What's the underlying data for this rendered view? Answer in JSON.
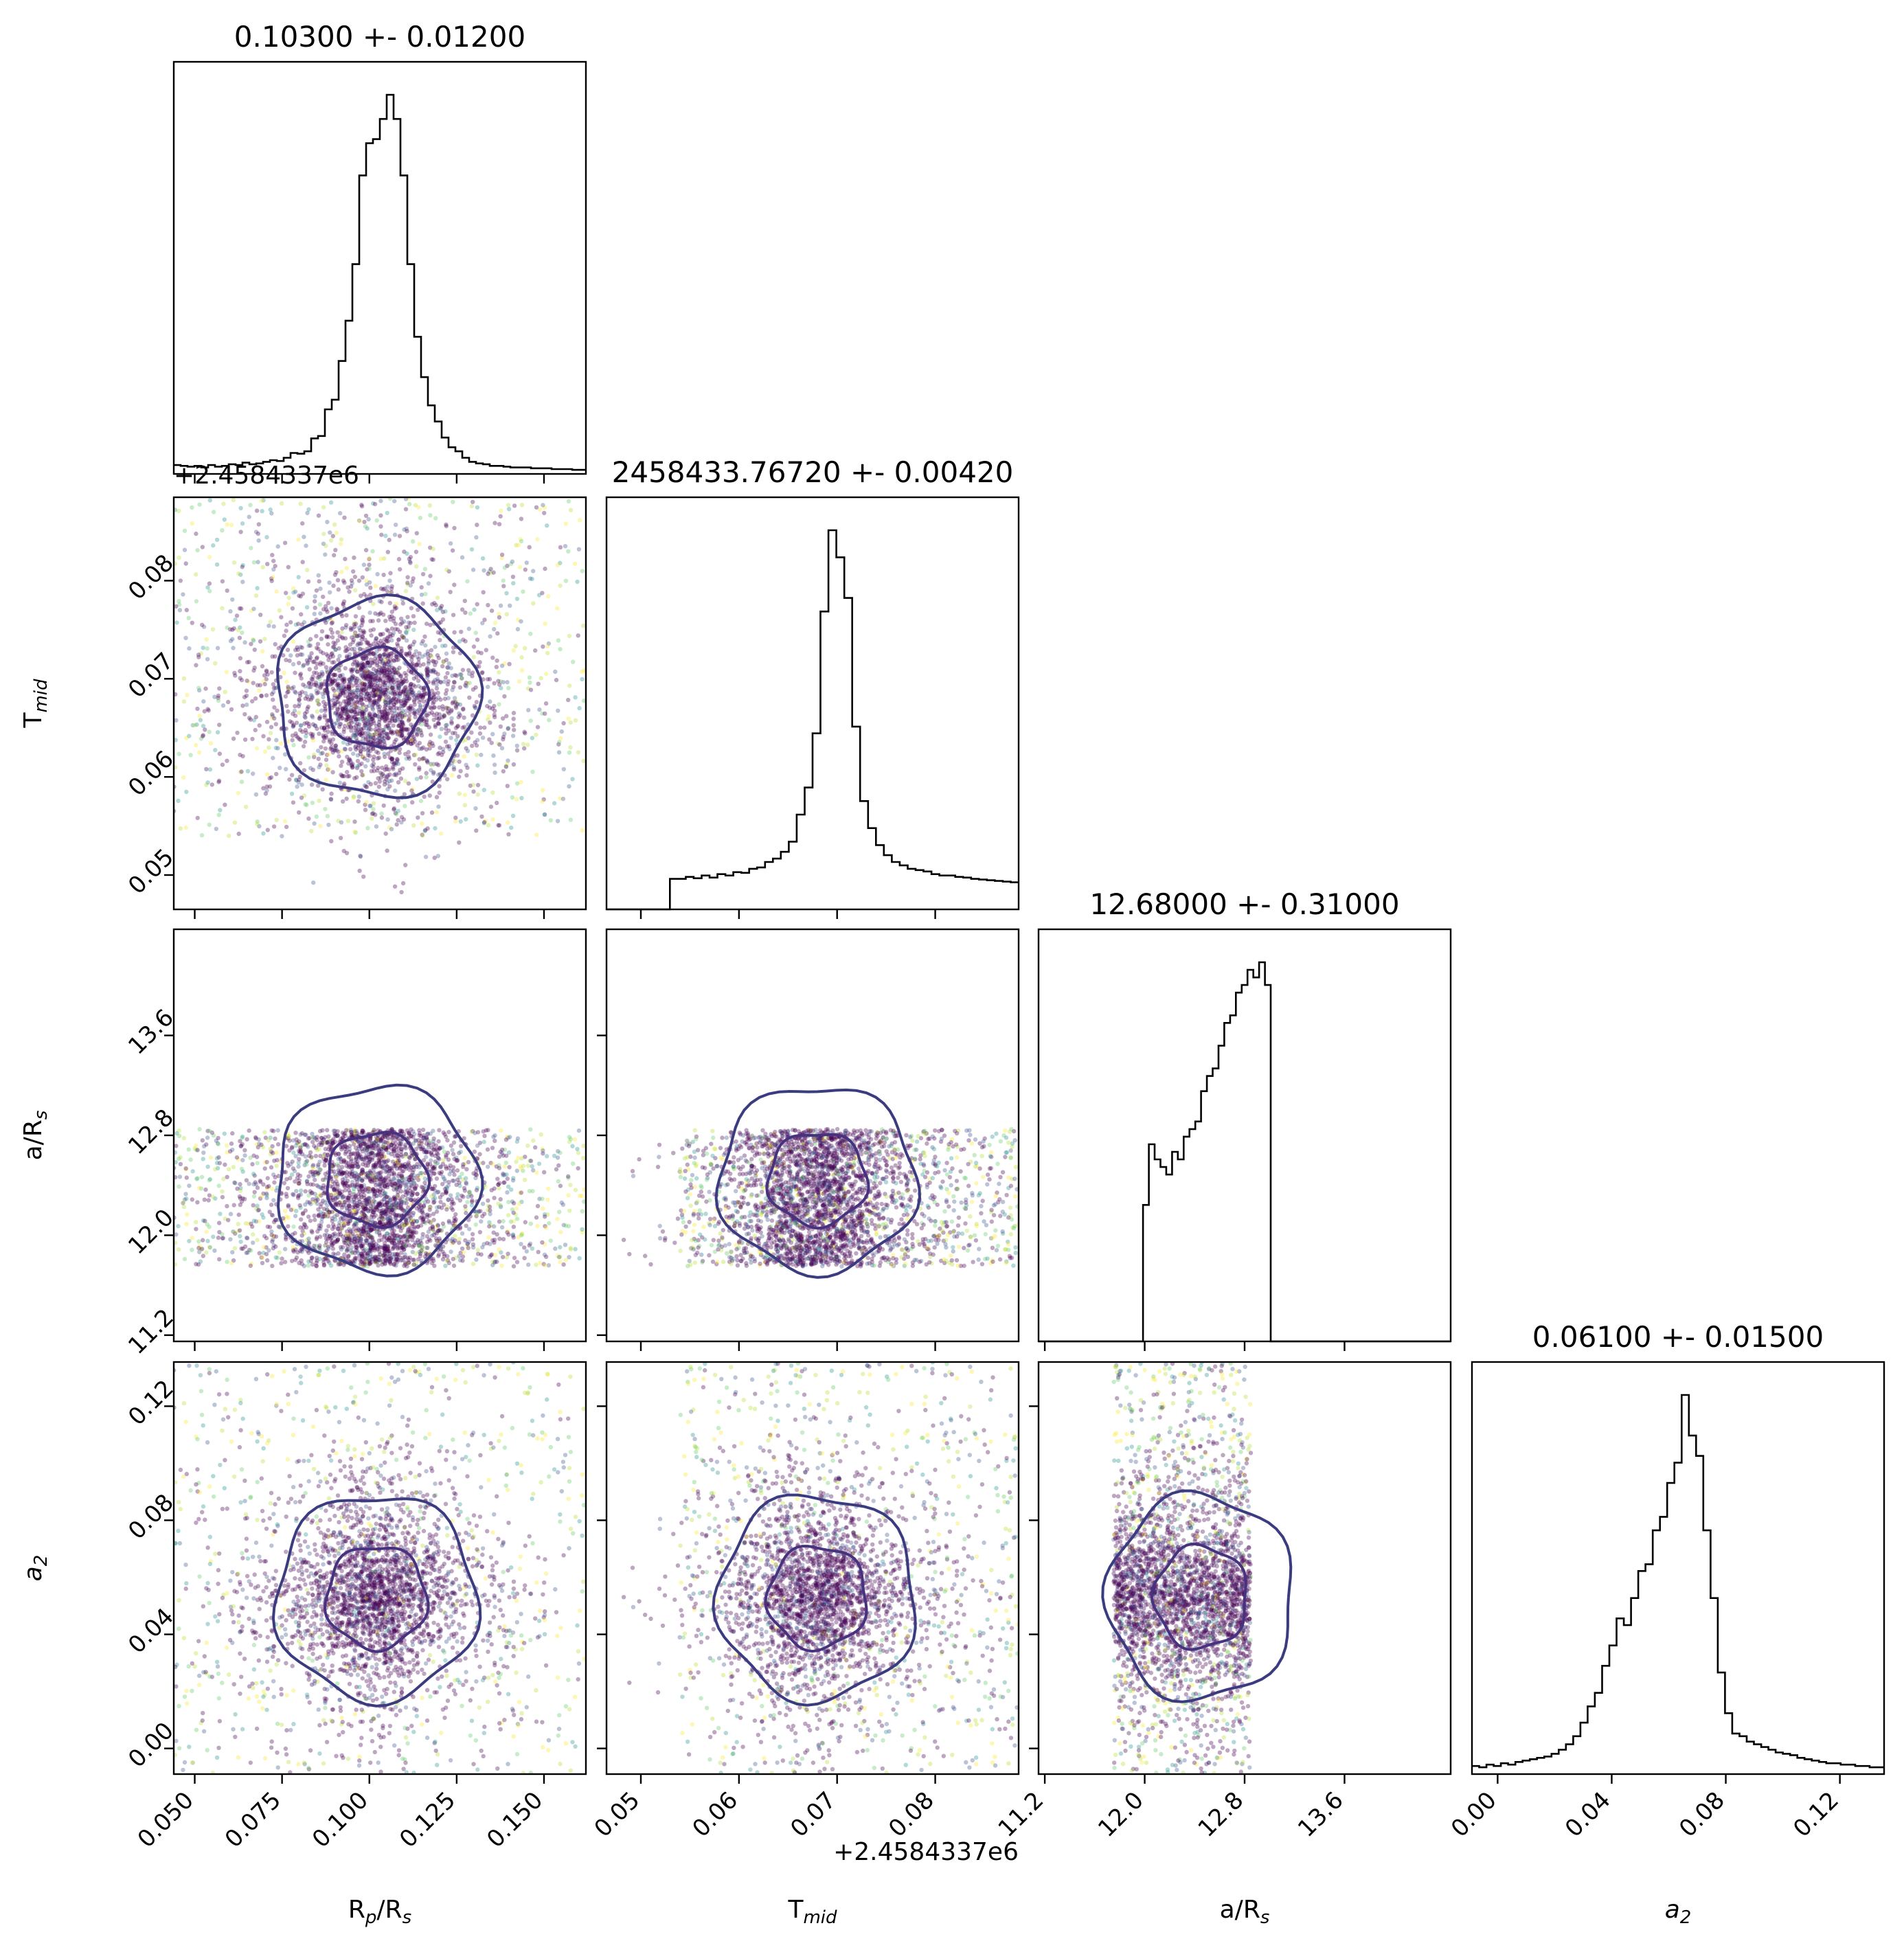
{
  "chart_data": {
    "type": "corner",
    "variables": [
      "R_p/R_s",
      "T_mid",
      "a/R_s",
      "a_2"
    ],
    "axis_labels": [
      {
        "main": "R",
        "sub": "p",
        "tail": "/R",
        "sub2": "s"
      },
      {
        "main": "T",
        "sub": "mid",
        "tail": "",
        "sub2": ""
      },
      {
        "main": "a/R",
        "sub": "s",
        "tail": "",
        "sub2": ""
      },
      {
        "main": "a",
        "sub": "2",
        "tail": "",
        "sub2": "",
        "italic": true
      }
    ],
    "titles": [
      "0.10300 +- 0.01200",
      "2458433.76720 +- 0.00420",
      "12.68000 +- 0.31000",
      "0.06100 +- 0.01500"
    ],
    "offset_text": "+2.4584337e6",
    "ranges": [
      [
        0.044,
        0.162
      ],
      [
        0.0465,
        0.0885
      ],
      [
        11.15,
        14.45
      ],
      [
        -0.009,
        0.1355
      ]
    ],
    "ticks": [
      {
        "values": [
          0.05,
          0.075,
          0.1,
          0.125,
          0.15
        ],
        "labels": [
          "0.050",
          "0.075",
          "0.100",
          "0.125",
          "0.150"
        ]
      },
      {
        "values": [
          0.05,
          0.06,
          0.07,
          0.08
        ],
        "labels": [
          "0.05",
          "0.06",
          "0.07",
          "0.08"
        ]
      },
      {
        "values": [
          11.2,
          12.0,
          12.8,
          13.6
        ],
        "labels": [
          "11.2",
          "12.0",
          "12.8",
          "13.6"
        ]
      },
      {
        "values": [
          0.0,
          0.04,
          0.08,
          0.12
        ],
        "labels": [
          "0.00",
          "0.04",
          "0.08",
          "0.12"
        ]
      }
    ],
    "diagonal_histograms": [
      {
        "variable": "R_p/R_s",
        "bins": [
          0.044,
          0.162
        ],
        "counts": [
          11,
          10,
          9,
          10,
          8,
          11,
          9,
          10,
          12,
          11,
          14,
          12,
          13,
          15,
          17,
          16,
          20,
          26,
          25,
          28,
          44,
          47,
          80,
          92,
          140,
          190,
          260,
          370,
          410,
          415,
          440,
          470,
          440,
          370,
          260,
          170,
          120,
          85,
          65,
          45,
          33,
          28,
          20,
          15,
          13,
          12,
          10,
          10,
          9,
          8,
          8,
          8,
          7,
          7,
          7,
          6,
          6,
          6,
          5,
          5
        ]
      },
      {
        "variable": "T_mid",
        "bins": [
          0.0465,
          0.0885
        ],
        "counts": [
          0,
          0,
          0,
          0,
          0,
          0,
          0,
          0,
          45,
          45,
          48,
          46,
          50,
          47,
          52,
          50,
          55,
          54,
          60,
          62,
          70,
          75,
          85,
          100,
          140,
          180,
          260,
          440,
          560,
          520,
          460,
          270,
          160,
          120,
          95,
          80,
          70,
          65,
          60,
          58,
          56,
          52,
          50,
          50,
          48,
          47,
          45,
          44,
          43,
          42,
          41,
          40
        ]
      },
      {
        "variable": "a/R_s",
        "bins": [
          11.15,
          14.45
        ],
        "counts": [
          0,
          0,
          0,
          0,
          0,
          0,
          0,
          0,
          0,
          0,
          0,
          0,
          0,
          0,
          0,
          0,
          0,
          0,
          180,
          260,
          240,
          230,
          220,
          250,
          240,
          270,
          280,
          290,
          330,
          350,
          360,
          390,
          420,
          430,
          460,
          470,
          490,
          480,
          500,
          470,
          0,
          0,
          0,
          0,
          0,
          0,
          0,
          0,
          0,
          0,
          0,
          0,
          0,
          0,
          0,
          0,
          0,
          0,
          0,
          0,
          0,
          0,
          0,
          0,
          0,
          0,
          0,
          0,
          0,
          0,
          0
        ]
      },
      {
        "variable": "a_2",
        "bins": [
          -0.009,
          0.1355
        ],
        "counts": [
          6,
          5,
          7,
          6,
          8,
          7,
          9,
          10,
          11,
          12,
          13,
          15,
          18,
          22,
          28,
          38,
          50,
          60,
          80,
          95,
          115,
          110,
          130,
          150,
          155,
          180,
          190,
          215,
          230,
          280,
          250,
          235,
          180,
          130,
          75,
          45,
          30,
          28,
          24,
          22,
          20,
          18,
          16,
          15,
          14,
          12,
          11,
          10,
          9,
          8,
          8,
          7,
          7,
          6,
          6,
          5,
          5
        ]
      }
    ],
    "scatter_colors": [
      "#440154",
      "#3b528b",
      "#21918c",
      "#5ec962",
      "#b5de2b",
      "#fde725"
    ],
    "contour_colors": [
      "#3b3b80",
      "#fde725"
    ],
    "contour_centers": {
      "R_p/R_s": 0.102,
      "T_mid": 0.068,
      "a/R_s": 12.45,
      "a_2": 0.053
    }
  }
}
